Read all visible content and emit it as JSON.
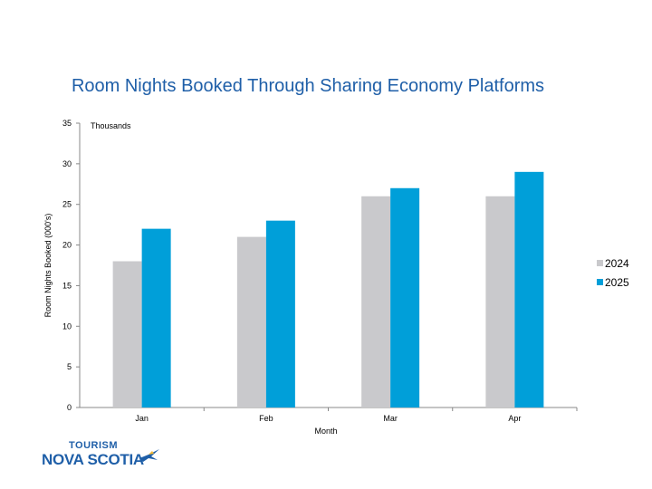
{
  "chart_data": {
    "type": "bar",
    "title": "Room Nights Booked Through Sharing Economy Platforms",
    "xlabel": "Month",
    "ylabel": "Room Nights Booked (000's)",
    "unit_note": "Thousands",
    "categories": [
      "Jan",
      "Feb",
      "Mar",
      "Apr"
    ],
    "series": [
      {
        "name": "2024",
        "values": [
          18,
          21,
          26,
          26
        ],
        "color": "#c9c9cc"
      },
      {
        "name": "2025",
        "values": [
          22,
          23,
          27,
          29
        ],
        "color": "#009fd9"
      }
    ],
    "ylim": [
      0,
      35
    ],
    "yticks": [
      0,
      5,
      10,
      15,
      20,
      25,
      30,
      35
    ],
    "grid": false,
    "legend_position": "right"
  },
  "logo": {
    "line1": "TOURISM",
    "line2": "NOVA SCOTIA",
    "icon": "bird-icon"
  }
}
